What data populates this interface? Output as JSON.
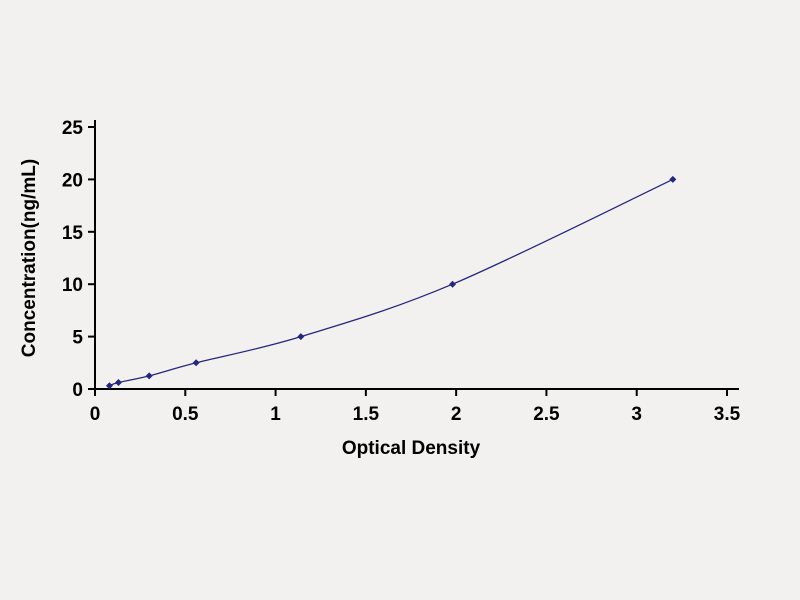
{
  "page": {
    "background": "#f2f1ef"
  },
  "chart_data": {
    "type": "line",
    "title": "",
    "xlabel": "Optical Density",
    "ylabel": "Concentration(ng/mL)",
    "series": [
      {
        "name": "standard-curve",
        "x": [
          0.08,
          0.13,
          0.3,
          0.56,
          1.14,
          1.98,
          3.2
        ],
        "y": [
          0.31,
          0.62,
          1.25,
          2.5,
          5,
          10,
          20
        ]
      }
    ],
    "xlim": [
      0,
      3.5
    ],
    "ylim": [
      0,
      25
    ],
    "xtick_labels": [
      "0",
      "0.5",
      "1",
      "1.5",
      "2",
      "2.5",
      "3",
      "3.5"
    ],
    "ytick_labels": [
      "0",
      "5",
      "10",
      "15",
      "20",
      "25"
    ],
    "grid": false,
    "legend": "none",
    "line_color": "#26267d",
    "marker": "diamond",
    "axis_color": "#000000",
    "text_color": "#000000"
  }
}
